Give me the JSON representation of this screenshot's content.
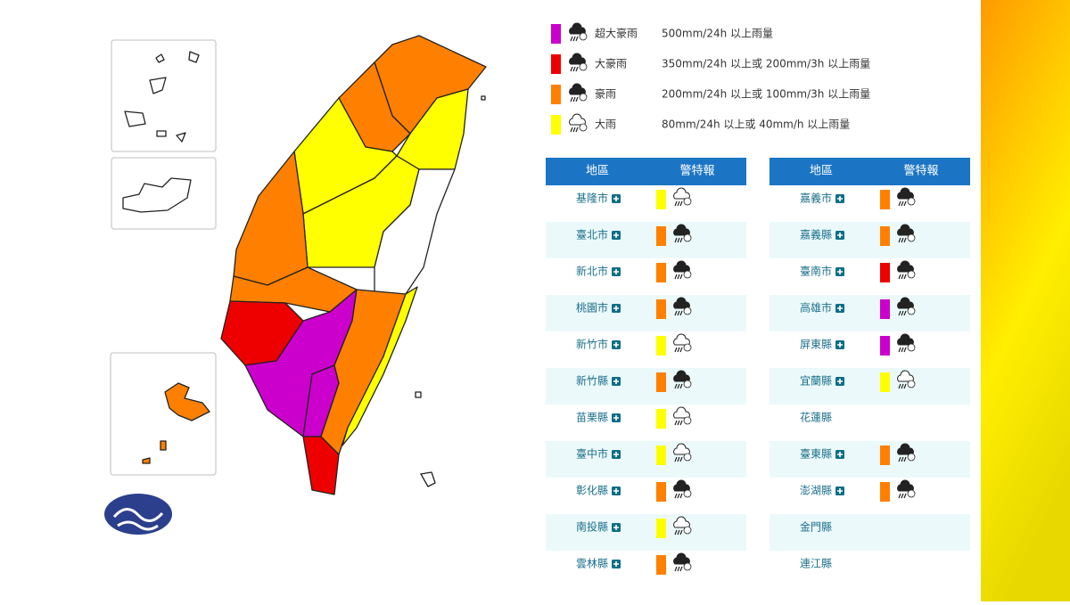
{
  "legend": [
    {
      "color": "#cc00cc",
      "name": "超大豪雨",
      "description": "500mm/24h 以上雨量"
    },
    {
      "color": "#ee0000",
      "name": "大豪雨",
      "description": "350mm/24h 以上或 200mm/3h 以上雨量"
    },
    {
      "color": "#ff8000",
      "name": "豪雨",
      "description": "200mm/24h 以上或 100mm/3h 以上雨量"
    },
    {
      "color": "#ffff00",
      "name": "大雨",
      "description": "80mm/24h 以上或 40mm/h 以上雨量"
    }
  ],
  "tables": [
    {
      "headers": [
        "地區",
        "警特報"
      ],
      "rows": [
        {
          "name": "基隆市",
          "color": "#ffff00"
        },
        {
          "name": "臺北市",
          "color": "#ff8000"
        },
        {
          "name": "新北市",
          "color": "#ff8000"
        },
        {
          "name": "桃園市",
          "color": "#ff8000"
        },
        {
          "name": "新竹市",
          "color": "#ffff00"
        },
        {
          "name": "新竹縣",
          "color": "#ff8000"
        },
        {
          "name": "苗栗縣",
          "color": "#ffff00"
        },
        {
          "name": "臺中市",
          "color": "#ffff00"
        },
        {
          "name": "彰化縣",
          "color": "#ff8000"
        },
        {
          "name": "南投縣",
          "color": "#ffff00"
        },
        {
          "name": "雲林縣",
          "color": "#ff8000"
        }
      ]
    },
    {
      "headers": [
        "地區",
        "警特報"
      ],
      "rows": [
        {
          "name": "嘉義市",
          "color": "#ff8000"
        },
        {
          "name": "嘉義縣",
          "color": "#ff8000"
        },
        {
          "name": "臺南市",
          "color": "#ee0000"
        },
        {
          "name": "高雄市",
          "color": "#cc00cc"
        },
        {
          "name": "屏東縣",
          "color": "#cc00cc"
        },
        {
          "name": "宜蘭縣",
          "color": "#ffff00"
        },
        {
          "name": "花蓮縣",
          "color": null
        },
        {
          "name": "臺東縣",
          "color": "#ff8000"
        },
        {
          "name": "澎湖縣",
          "color": "#ff8000"
        },
        {
          "name": "金門縣",
          "color": null
        },
        {
          "name": "連江縣",
          "color": null
        }
      ]
    }
  ]
}
